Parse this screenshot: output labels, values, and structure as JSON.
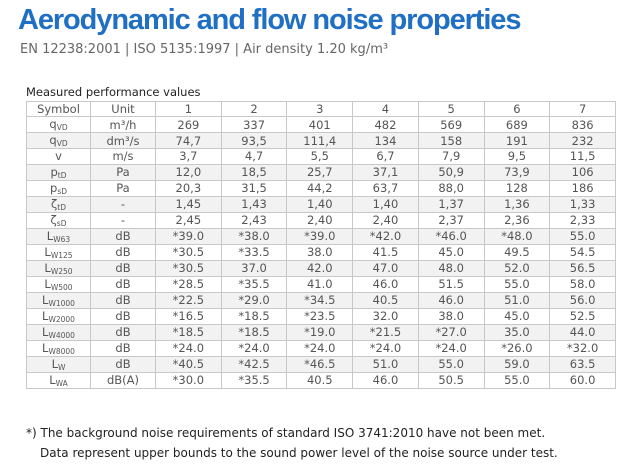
{
  "header": {
    "title": "Aerodynamic and flow noise properties",
    "subtitle": "EN 12238:2001 | ISO 5135:1997 | Air density 1.20 kg/m³"
  },
  "table": {
    "caption": "Measured performance values",
    "columns": [
      "Symbol",
      "Unit",
      "1",
      "2",
      "3",
      "4",
      "5",
      "6",
      "7"
    ],
    "rows": [
      [
        {
          "base": "q",
          "sub": "VD"
        },
        "m³/h",
        "269",
        "337",
        "401",
        "482",
        "569",
        "689",
        "836"
      ],
      [
        {
          "base": "q",
          "sub": "VD"
        },
        "dm³/s",
        "74,7",
        "93,5",
        "111,4",
        "134",
        "158",
        "191",
        "232"
      ],
      [
        {
          "base": "v",
          "sub": ""
        },
        "m/s",
        "3,7",
        "4,7",
        "5,5",
        "6,7",
        "7,9",
        "9,5",
        "11,5"
      ],
      [
        {
          "base": "p",
          "sub": "tD"
        },
        "Pa",
        "12,0",
        "18,5",
        "25,7",
        "37,1",
        "50,9",
        "73,9",
        "106"
      ],
      [
        {
          "base": "p",
          "sub": "sD"
        },
        "Pa",
        "20,3",
        "31,5",
        "44,2",
        "63,7",
        "88,0",
        "128",
        "186"
      ],
      [
        {
          "base": "ζ",
          "sub": "tD"
        },
        "-",
        "1,45",
        "1,43",
        "1,40",
        "1,40",
        "1,37",
        "1,36",
        "1,33"
      ],
      [
        {
          "base": "ζ",
          "sub": "sD"
        },
        "-",
        "2,45",
        "2,43",
        "2,40",
        "2,40",
        "2,37",
        "2,36",
        "2,33"
      ],
      [
        {
          "base": "L",
          "sub": "W63"
        },
        "dB",
        "*39.0",
        "*38.0",
        "*39.0",
        "*42.0",
        "*46.0",
        "*48.0",
        "55.0"
      ],
      [
        {
          "base": "L",
          "sub": "W125"
        },
        "dB",
        "*30.5",
        "*33.5",
        "38.0",
        "41.5",
        "45.0",
        "49.5",
        "54.5"
      ],
      [
        {
          "base": "L",
          "sub": "W250"
        },
        "dB",
        "*30.5",
        "37.0",
        "42.0",
        "47.0",
        "48.0",
        "52.0",
        "56.5"
      ],
      [
        {
          "base": "L",
          "sub": "W500"
        },
        "dB",
        "*28.5",
        "*35.5",
        "41.0",
        "46.0",
        "51.5",
        "55.0",
        "58.0"
      ],
      [
        {
          "base": "L",
          "sub": "W1000"
        },
        "dB",
        "*22.5",
        "*29.0",
        "*34.5",
        "40.5",
        "46.0",
        "51.0",
        "56.0"
      ],
      [
        {
          "base": "L",
          "sub": "W2000"
        },
        "dB",
        "*16.5",
        "*18.5",
        "*23.5",
        "32.0",
        "38.0",
        "45.0",
        "52.5"
      ],
      [
        {
          "base": "L",
          "sub": "W4000"
        },
        "dB",
        "*18.5",
        "*18.5",
        "*19.0",
        "*21.5",
        "*27.0",
        "35.0",
        "44.0"
      ],
      [
        {
          "base": "L",
          "sub": "W8000"
        },
        "dB",
        "*24.0",
        "*24.0",
        "*24.0",
        "*24.0",
        "*24.0",
        "*26.0",
        "*32.0"
      ],
      [
        {
          "base": "L",
          "sub": "W"
        },
        "dB",
        "*40.5",
        "*42.5",
        "*46.5",
        "51.0",
        "55.0",
        "59.0",
        "63.5"
      ],
      [
        {
          "base": "L",
          "sub": "WA"
        },
        "dB(A)",
        "*30.0",
        "*35.5",
        "40.5",
        "46.0",
        "50.5",
        "55.0",
        "60.0"
      ]
    ]
  },
  "footnotes": [
    "*) The background noise requirements of standard ISO 3741:2010 have not been met.",
    "Data represent upper bounds to the sound power level of the noise source under test."
  ]
}
